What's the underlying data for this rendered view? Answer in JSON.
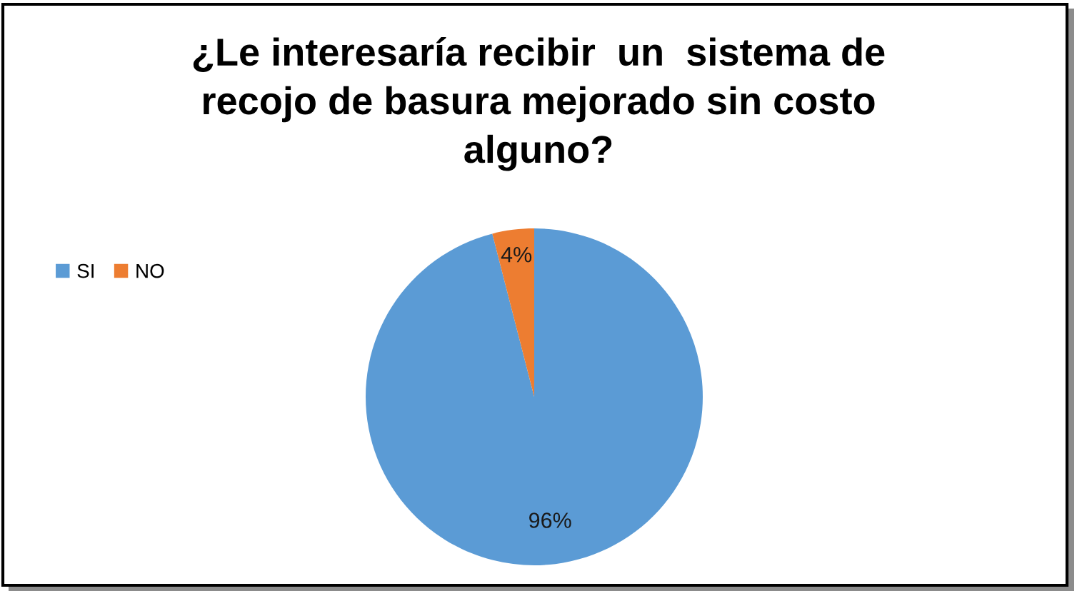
{
  "chart_data": {
    "type": "pie",
    "title": "¿Le interesaría recibir  un  sistema de\nrecojo de basura mejorado sin costo\nalguno?",
    "categories": [
      "SI",
      "NO"
    ],
    "values": [
      96,
      4
    ],
    "colors": [
      "#5b9bd5",
      "#ed7d31"
    ],
    "value_labels": [
      "96%",
      "4%"
    ],
    "legend": "left"
  }
}
